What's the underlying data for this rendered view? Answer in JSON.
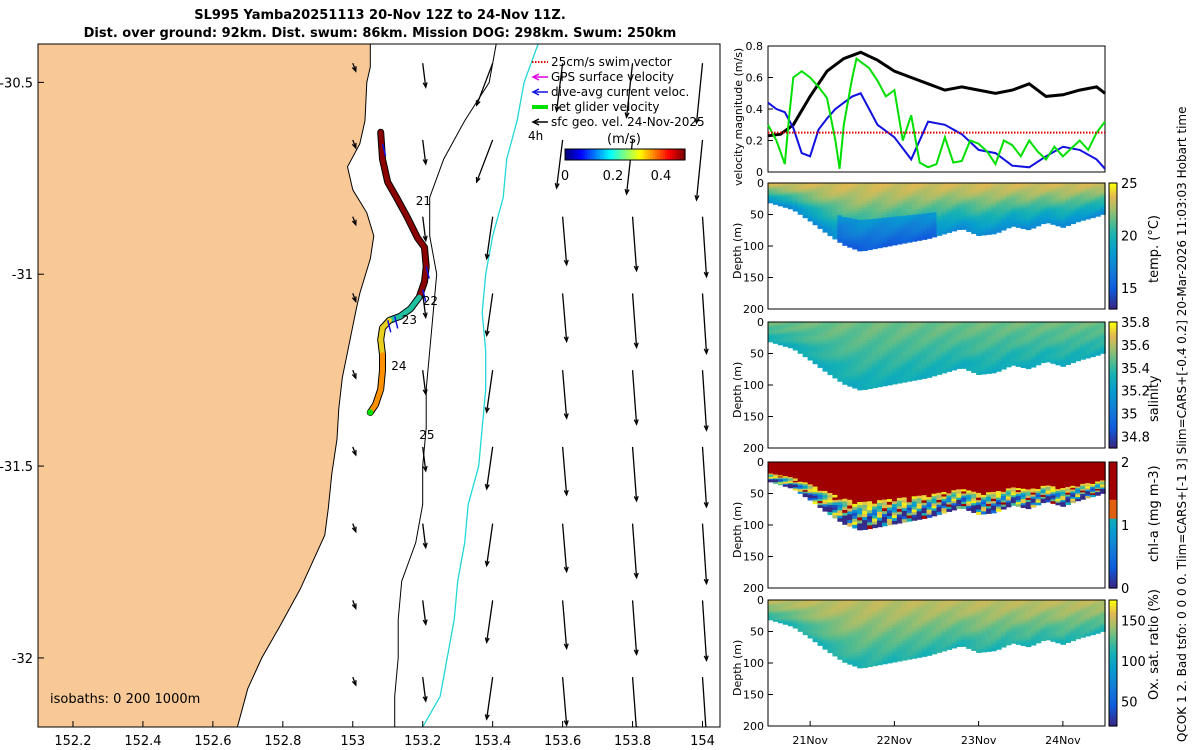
{
  "header": {
    "title_line1": "SL995 Yamba20251113 20-Nov 12Z to 24-Nov 11Z.",
    "title_line2": "Dist. over ground: 92km. Dist. swum: 86km. Mission DOG: 298km. Swum: 250km",
    "right_vertical_text": "QCOK 1  2. Bad tsfo: 0  0  0  0. Tlim=CARS+[-1 3] Slim=CARS+[-0.4 0.2] 20-Mar-2026 11:03:03 Hobart time"
  },
  "colors": {
    "land": "#F8C896",
    "track_fast": "#8B0000",
    "net_velocity": "#00E000",
    "dive_avg": "#1010E0",
    "gps_surface": "#E000E0",
    "swim_vector": "#E00000",
    "isobath_200": "#000000",
    "isobath_1000": "#20D8D8"
  },
  "chart_data": [
    {
      "type": "map",
      "name": "glider track map",
      "xlim": [
        152.1,
        154.05
      ],
      "ylim": [
        -32.18,
        -30.4
      ],
      "x_ticks": [
        152.2,
        152.4,
        152.6,
        152.8,
        153,
        153.2,
        153.4,
        153.6,
        153.8,
        154
      ],
      "x_tick_labels": [
        "152.2",
        "152.4",
        "152.6",
        "152.8",
        "153",
        "153.2",
        "153.4",
        "153.6",
        "153.8",
        "154"
      ],
      "y_ticks": [
        -30.5,
        -31,
        -31.5,
        -32
      ],
      "y_tick_labels": [
        "-30.5",
        "-31",
        "-31.5",
        "-32"
      ],
      "legend": [
        {
          "label": "25cm/s swim vector",
          "color": "#E00000",
          "style": "dotted"
        },
        {
          "label": "GPS surface velocity",
          "color": "#E000E0",
          "style": "arrow"
        },
        {
          "label": "dive-avg current veloc.",
          "color": "#1010E0",
          "style": "arrow"
        },
        {
          "label": "net glider velocity",
          "color": "#00E000",
          "style": "line"
        },
        {
          "label": "sfc geo. vel. 24-Nov-2025",
          "color": "#000000",
          "style": "arrow"
        }
      ],
      "legend_note": "4h",
      "colorbar": {
        "title": "(m/s)",
        "ticks": [
          0,
          0.2,
          0.4
        ],
        "tick_labels": [
          "0",
          "0.2",
          "0.4"
        ],
        "range": [
          0,
          0.5
        ]
      },
      "isobath_label": "isobaths: 0   200  1000m",
      "day_labels": [
        {
          "text": "21",
          "lon": 153.18,
          "lat": -30.82
        },
        {
          "text": "22",
          "lon": 153.2,
          "lat": -31.08
        },
        {
          "text": "23",
          "lon": 153.14,
          "lat": -31.13
        },
        {
          "text": "24",
          "lon": 153.11,
          "lat": -31.25
        },
        {
          "text": "25",
          "lon": 153.19,
          "lat": -31.43
        }
      ],
      "track": [
        [
          153.08,
          -30.63
        ],
        [
          153.085,
          -30.7
        ],
        [
          153.1,
          -30.76
        ],
        [
          153.125,
          -30.8
        ],
        [
          153.155,
          -30.85
        ],
        [
          153.185,
          -30.905
        ],
        [
          153.205,
          -30.93
        ],
        [
          153.21,
          -30.98
        ],
        [
          153.205,
          -31.02
        ],
        [
          153.19,
          -31.06
        ],
        [
          153.165,
          -31.09
        ],
        [
          153.135,
          -31.11
        ],
        [
          153.105,
          -31.12
        ],
        [
          153.085,
          -31.14
        ],
        [
          153.08,
          -31.17
        ],
        [
          153.085,
          -31.21
        ],
        [
          153.085,
          -31.25
        ],
        [
          153.08,
          -31.3
        ],
        [
          153.065,
          -31.34
        ],
        [
          153.05,
          -31.36
        ]
      ],
      "coast": [
        [
          153.05,
          -30.4
        ],
        [
          153.05,
          -30.46
        ],
        [
          153.04,
          -30.5
        ],
        [
          153.035,
          -30.6
        ],
        [
          153.02,
          -30.66
        ],
        [
          152.985,
          -30.72
        ],
        [
          153.0,
          -30.78
        ],
        [
          153.04,
          -30.84
        ],
        [
          153.06,
          -30.9
        ],
        [
          153.05,
          -30.96
        ],
        [
          153.04,
          -30.99
        ],
        [
          153.02,
          -31.05
        ],
        [
          153.01,
          -31.09
        ],
        [
          152.99,
          -31.18
        ],
        [
          152.97,
          -31.27
        ],
        [
          152.96,
          -31.35
        ],
        [
          152.955,
          -31.43
        ],
        [
          152.94,
          -31.52
        ],
        [
          152.93,
          -31.61
        ],
        [
          152.92,
          -31.68
        ],
        [
          152.85,
          -31.82
        ],
        [
          152.79,
          -31.92
        ],
        [
          152.74,
          -32.0
        ],
        [
          152.7,
          -32.08
        ],
        [
          152.67,
          -32.18
        ]
      ],
      "isobath_200": [
        [
          153.41,
          -30.4
        ],
        [
          153.39,
          -30.5
        ],
        [
          153.32,
          -30.6
        ],
        [
          153.26,
          -30.7
        ],
        [
          153.22,
          -30.8
        ],
        [
          153.22,
          -30.9
        ],
        [
          153.24,
          -31.0
        ],
        [
          153.23,
          -31.1
        ],
        [
          153.22,
          -31.2
        ],
        [
          153.21,
          -31.3
        ],
        [
          153.21,
          -31.4
        ],
        [
          153.2,
          -31.5
        ],
        [
          153.2,
          -31.6
        ],
        [
          153.18,
          -31.7
        ],
        [
          153.14,
          -31.8
        ],
        [
          153.13,
          -31.9
        ],
        [
          153.13,
          -32.0
        ],
        [
          153.12,
          -32.1
        ],
        [
          153.12,
          -32.18
        ]
      ],
      "isobath_1000": [
        [
          153.53,
          -30.4
        ],
        [
          153.49,
          -30.5
        ],
        [
          153.47,
          -30.6
        ],
        [
          153.44,
          -30.7
        ],
        [
          153.43,
          -30.8
        ],
        [
          153.4,
          -30.9
        ],
        [
          153.38,
          -31.0
        ],
        [
          153.37,
          -31.1
        ],
        [
          153.38,
          -31.2
        ],
        [
          153.38,
          -31.3
        ],
        [
          153.37,
          -31.4
        ],
        [
          153.36,
          -31.5
        ],
        [
          153.33,
          -31.6
        ],
        [
          153.32,
          -31.7
        ],
        [
          153.3,
          -31.8
        ],
        [
          153.29,
          -31.9
        ],
        [
          153.27,
          -32.0
        ],
        [
          153.25,
          -32.1
        ],
        [
          153.2,
          -32.18
        ]
      ]
    },
    {
      "type": "line",
      "name": "velocity magnitude",
      "ylabel": "velocity magnitude (m/s)",
      "ylim": [
        0,
        0.8
      ],
      "y_ticks": [
        0,
        0.2,
        0.4,
        0.6,
        0.8
      ],
      "y_tick_labels": [
        "0",
        "0.2",
        "0.4",
        "0.6",
        "0.8"
      ],
      "xlim": [
        20.5,
        24.5
      ],
      "series": [
        {
          "name": "geostrophic velocity",
          "color": "#000000",
          "width": 3,
          "x": [
            20.5,
            20.65,
            20.8,
            21.0,
            21.2,
            21.4,
            21.6,
            21.8,
            22.0,
            22.2,
            22.4,
            22.6,
            22.8,
            23.0,
            23.2,
            23.4,
            23.6,
            23.8,
            24.0,
            24.2,
            24.4,
            24.5
          ],
          "y": [
            0.23,
            0.24,
            0.3,
            0.48,
            0.64,
            0.72,
            0.76,
            0.71,
            0.64,
            0.6,
            0.56,
            0.52,
            0.54,
            0.52,
            0.5,
            0.52,
            0.56,
            0.48,
            0.49,
            0.52,
            0.54,
            0.5
          ]
        },
        {
          "name": "dive-avg current",
          "color": "#1010E0",
          "width": 2,
          "x": [
            20.5,
            20.6,
            20.7,
            20.8,
            20.9,
            21.0,
            21.1,
            21.2,
            21.3,
            21.4,
            21.5,
            21.6,
            21.7,
            21.8,
            22.0,
            22.2,
            22.4,
            22.6,
            22.8,
            23.0,
            23.2,
            23.4,
            23.6,
            23.8,
            24.0,
            24.2,
            24.4,
            24.5
          ],
          "y": [
            0.44,
            0.4,
            0.38,
            0.28,
            0.12,
            0.1,
            0.27,
            0.34,
            0.4,
            0.44,
            0.48,
            0.5,
            0.4,
            0.3,
            0.22,
            0.08,
            0.32,
            0.3,
            0.24,
            0.14,
            0.12,
            0.04,
            0.03,
            0.1,
            0.16,
            0.14,
            0.08,
            0.02
          ]
        },
        {
          "name": "net glider velocity",
          "color": "#00E000",
          "width": 2,
          "x": [
            20.5,
            20.6,
            20.7,
            20.75,
            20.8,
            20.9,
            21.0,
            21.1,
            21.2,
            21.3,
            21.35,
            21.4,
            21.5,
            21.55,
            21.6,
            21.7,
            21.8,
            21.9,
            22.0,
            22.1,
            22.2,
            22.3,
            22.4,
            22.5,
            22.6,
            22.7,
            22.8,
            22.9,
            23.0,
            23.1,
            23.2,
            23.3,
            23.4,
            23.5,
            23.6,
            23.7,
            23.8,
            23.9,
            24.0,
            24.1,
            24.2,
            24.3,
            24.4,
            24.5
          ],
          "y": [
            0.3,
            0.2,
            0.05,
            0.35,
            0.6,
            0.64,
            0.6,
            0.54,
            0.47,
            0.2,
            0.02,
            0.3,
            0.6,
            0.72,
            0.7,
            0.66,
            0.58,
            0.48,
            0.52,
            0.2,
            0.36,
            0.06,
            0.03,
            0.05,
            0.22,
            0.06,
            0.07,
            0.2,
            0.18,
            0.13,
            0.05,
            0.2,
            0.17,
            0.1,
            0.2,
            0.13,
            0.08,
            0.16,
            0.1,
            0.15,
            0.2,
            0.14,
            0.25,
            0.32
          ]
        },
        {
          "name": "25cm/s swim vector",
          "color": "#E00000",
          "width": 2,
          "dotted": true,
          "x": [
            20.5,
            24.5
          ],
          "y": [
            0.25,
            0.25
          ]
        }
      ]
    },
    {
      "type": "heatmap",
      "name": "temperature section",
      "xlim": [
        20.5,
        24.5
      ],
      "ylim": [
        200,
        0
      ],
      "ylabel": "Depth (m)",
      "y_ticks": [
        0,
        50,
        100,
        150,
        200
      ],
      "y_tick_labels": [
        "0",
        "50",
        "100",
        "150",
        "200"
      ],
      "colorbar_label": "temp. (°C)",
      "cmin": 13,
      "cmax": 25,
      "cbar_ticks": [
        15,
        20,
        25
      ],
      "cbar_tick_labels": [
        "15",
        "20",
        "25"
      ],
      "colormap": "parula",
      "bottom_x": [
        20.5,
        20.8,
        21.0,
        21.2,
        21.4,
        21.6,
        21.8,
        22.0,
        22.2,
        22.4,
        22.6,
        22.8,
        23.0,
        23.2,
        23.4,
        23.6,
        23.8,
        24.0,
        24.2,
        24.4,
        24.5
      ],
      "bottom_depth": [
        30,
        42,
        60,
        80,
        98,
        108,
        103,
        98,
        93,
        88,
        80,
        72,
        83,
        80,
        68,
        74,
        62,
        70,
        60,
        53,
        48
      ],
      "surface_value": 23.5,
      "bottom_value": 17.5
    },
    {
      "type": "heatmap",
      "name": "salinity section",
      "xlim": [
        20.5,
        24.5
      ],
      "ylim": [
        200,
        0
      ],
      "ylabel": "Depth (m)",
      "y_ticks": [
        0,
        50,
        100,
        150,
        200
      ],
      "y_tick_labels": [
        "0",
        "50",
        "100",
        "150",
        "200"
      ],
      "colorbar_label": "salinity",
      "cmin": 34.7,
      "cmax": 35.8,
      "cbar_ticks": [
        34.8,
        35,
        35.2,
        35.4,
        35.6,
        35.8
      ],
      "cbar_tick_labels": [
        "34.8",
        "35",
        "35.2",
        "35.4",
        "35.6",
        "35.8"
      ],
      "colormap": "parula",
      "bottom_x": [
        20.5,
        20.8,
        21.0,
        21.2,
        21.4,
        21.6,
        21.8,
        22.0,
        22.2,
        22.4,
        22.6,
        22.8,
        23.0,
        23.2,
        23.4,
        23.6,
        23.8,
        24.0,
        24.2,
        24.4,
        24.5
      ],
      "bottom_depth": [
        30,
        42,
        60,
        80,
        98,
        108,
        103,
        98,
        93,
        88,
        80,
        72,
        83,
        80,
        68,
        74,
        62,
        70,
        60,
        53,
        48
      ],
      "surface_value": 35.5,
      "bottom_value": 35.3
    },
    {
      "type": "heatmap",
      "name": "chlorophyll section",
      "xlim": [
        20.5,
        24.5
      ],
      "ylim": [
        200,
        0
      ],
      "ylabel": "Depth (m)",
      "y_ticks": [
        0,
        50,
        100,
        150,
        200
      ],
      "y_tick_labels": [
        "0",
        "50",
        "100",
        "150",
        "200"
      ],
      "colorbar_label": "chl-a (mg m-3)",
      "cmin": 0,
      "cmax": 2,
      "cbar_ticks": [
        0,
        1,
        2
      ],
      "cbar_tick_labels": [
        "0",
        "1",
        "2"
      ],
      "colormap": "parula",
      "bottom_x": [
        20.5,
        20.8,
        21.0,
        21.2,
        21.4,
        21.6,
        21.8,
        22.0,
        22.2,
        22.4,
        22.6,
        22.8,
        23.0,
        23.2,
        23.4,
        23.6,
        23.8,
        24.0,
        24.2,
        24.4,
        24.5
      ],
      "bottom_depth": [
        30,
        42,
        60,
        80,
        98,
        108,
        103,
        98,
        93,
        88,
        80,
        72,
        83,
        80,
        68,
        74,
        62,
        70,
        60,
        53,
        48
      ],
      "surface_value": 2.0,
      "bottom_value": 0.6
    },
    {
      "type": "heatmap",
      "name": "oxygen saturation section",
      "xlim": [
        20.5,
        24.5
      ],
      "ylim": [
        200,
        0
      ],
      "ylabel": "Depth (m)",
      "y_ticks": [
        0,
        50,
        100,
        150,
        200
      ],
      "y_tick_labels": [
        "0",
        "50",
        "100",
        "150",
        "200"
      ],
      "colorbar_label": "Ox. sat. ratio (%)",
      "cmin": 20,
      "cmax": 175,
      "cbar_ticks": [
        50,
        100,
        150
      ],
      "cbar_tick_labels": [
        "50",
        "100",
        "150"
      ],
      "colormap": "parula",
      "x_ticks": [
        21,
        22,
        23,
        24
      ],
      "x_tick_labels": [
        "21Nov",
        "22Nov",
        "23Nov",
        "24Nov"
      ],
      "bottom_x": [
        20.5,
        20.8,
        21.0,
        21.2,
        21.4,
        21.6,
        21.8,
        22.0,
        22.2,
        22.4,
        22.6,
        22.8,
        23.0,
        23.2,
        23.4,
        23.6,
        23.8,
        24.0,
        24.2,
        24.4,
        24.5
      ],
      "bottom_depth": [
        30,
        42,
        60,
        80,
        98,
        108,
        103,
        98,
        93,
        88,
        80,
        72,
        83,
        80,
        68,
        74,
        62,
        70,
        60,
        53,
        48
      ],
      "surface_value": 150,
      "bottom_value": 112
    }
  ]
}
